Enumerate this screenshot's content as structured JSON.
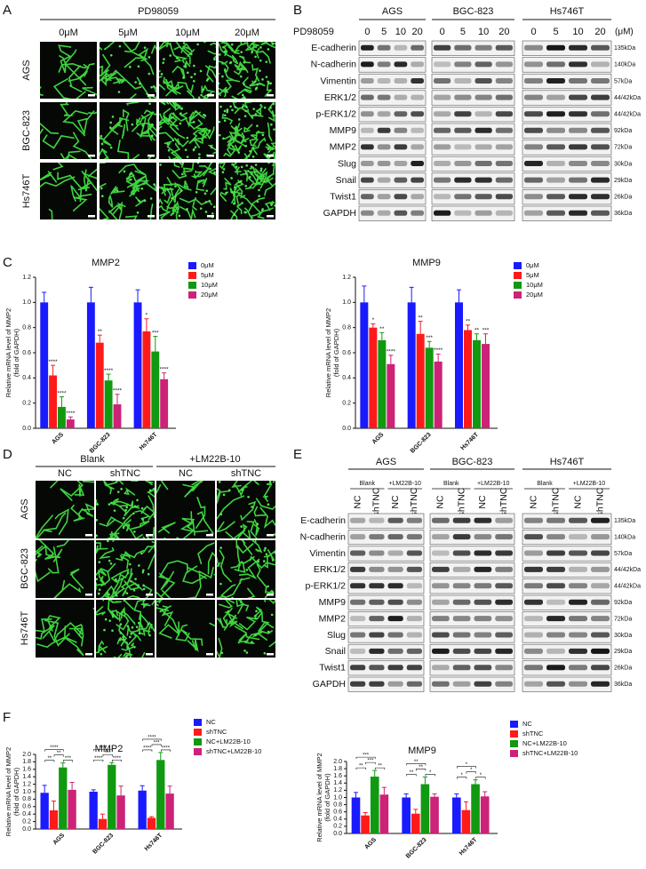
{
  "panel_labels": [
    "A",
    "B",
    "C",
    "D",
    "E",
    "F"
  ],
  "A": {
    "treatment": "PD98059",
    "columns": [
      "0μM",
      "5μM",
      "10μM",
      "20μM"
    ],
    "rows": [
      "AGS",
      "BGC-823",
      "Hs746T"
    ]
  },
  "B": {
    "treatment": "PD98059",
    "groups": [
      "AGS",
      "BGC-823",
      "Hs746T"
    ],
    "lanes": [
      "0",
      "5",
      "10",
      "20"
    ],
    "unit": "(μM)",
    "proteins": [
      "E-cadherin",
      "N-cadherin",
      "Vimentin",
      "ERK1/2",
      "p-ERK1/2",
      "MMP9",
      "MMP2",
      "Slug",
      "Snail",
      "Twist1",
      "GAPDH"
    ],
    "sizes": [
      "135kDa",
      "140kDa",
      "57kDa",
      "44/42kDa",
      "44/42kDa",
      "92kDa",
      "72kDa",
      "30kDa",
      "29kDa",
      "26kDa",
      "36kDa"
    ]
  },
  "D": {
    "groups": [
      "Blank",
      "+LM22B-10"
    ],
    "columns": [
      "NC",
      "shTNC",
      "NC",
      "shTNC"
    ],
    "rows": [
      "AGS",
      "BGC-823",
      "Hs746T"
    ]
  },
  "E": {
    "groups": [
      "AGS",
      "BGC-823",
      "Hs746T"
    ],
    "conditions": [
      "Blank",
      "+LM22B-10"
    ],
    "lanes": [
      "NC",
      "shTNC",
      "NC",
      "shTNC"
    ],
    "proteins": [
      "E-cadherin",
      "N-cadherin",
      "Vimentin",
      "ERK1/2",
      "p-ERK1/2",
      "MMP9",
      "MMP2",
      "Slug",
      "Snail",
      "Twist1",
      "GAPDH"
    ],
    "sizes": [
      "135kDa",
      "140kDa",
      "57kDa",
      "44/42kDa",
      "44/42kDa",
      "92kDa",
      "72kDa",
      "30kDa",
      "29kDa",
      "26kDa",
      "36kDa"
    ]
  },
  "chart_data": [
    {
      "type": "bar",
      "title": "MMP2",
      "ylabel": [
        "Relative mRNA level of MMP2",
        "(fold of GAPDH)"
      ],
      "categories": [
        "AGS",
        "BGC-823",
        "Hs746T"
      ],
      "ylim": [
        0,
        1.2
      ],
      "yticks": [
        {
          "value": 0,
          "label": "0.0"
        },
        {
          "value": 0.2,
          "label": "0.2"
        },
        {
          "value": 0.4,
          "label": "0.4"
        },
        {
          "value": 0.6,
          "label": "0.6"
        },
        {
          "value": 0.8,
          "label": "0.8"
        },
        {
          "value": 1.0,
          "label": "1.0"
        },
        {
          "value": 1.2,
          "label": "1.2"
        }
      ],
      "series": [
        {
          "name": "0μM",
          "color": "#1a1aff",
          "values": [
            1.0,
            1.0,
            1.0
          ],
          "errors": [
            0.08,
            0.12,
            0.1
          ]
        },
        {
          "name": "5μM",
          "color": "#ff1a1a",
          "values": [
            0.42,
            0.68,
            0.77
          ],
          "errors": [
            0.08,
            0.06,
            0.1
          ],
          "annotations": [
            "****",
            "**",
            "*"
          ]
        },
        {
          "name": "10μM",
          "color": "#119911",
          "values": [
            0.17,
            0.38,
            0.61
          ],
          "errors": [
            0.08,
            0.05,
            0.12
          ],
          "annotations": [
            "****",
            "****",
            "***"
          ]
        },
        {
          "name": "20μM",
          "color": "#cc2277",
          "values": [
            0.07,
            0.19,
            0.39
          ],
          "errors": [
            0.02,
            0.08,
            0.05
          ],
          "annotations": [
            "****",
            "****",
            "****"
          ]
        }
      ]
    },
    {
      "type": "bar",
      "title": "MMP9",
      "ylabel": [
        "Relative mRNA level of MMP2",
        "(fold of GAPDH)"
      ],
      "categories": [
        "AGS",
        "BGC-823",
        "Hs746T"
      ],
      "ylim": [
        0,
        1.2
      ],
      "yticks": [
        {
          "value": 0,
          "label": "0.0"
        },
        {
          "value": 0.2,
          "label": "0.2"
        },
        {
          "value": 0.4,
          "label": "0.4"
        },
        {
          "value": 0.6,
          "label": "0.6"
        },
        {
          "value": 0.8,
          "label": "0.8"
        },
        {
          "value": 1.0,
          "label": "1.0"
        },
        {
          "value": 1.2,
          "label": "1.2"
        }
      ],
      "series": [
        {
          "name": "0μM",
          "color": "#1a1aff",
          "values": [
            1.0,
            1.0,
            1.0
          ],
          "errors": [
            0.13,
            0.12,
            0.1
          ]
        },
        {
          "name": "5μM",
          "color": "#ff1a1a",
          "values": [
            0.8,
            0.75,
            0.78
          ],
          "errors": [
            0.03,
            0.1,
            0.04
          ],
          "annotations": [
            "*",
            "**",
            "**"
          ]
        },
        {
          "name": "10μM",
          "color": "#119911",
          "values": [
            0.7,
            0.64,
            0.7
          ],
          "errors": [
            0.06,
            0.05,
            0.05
          ],
          "annotations": [
            "**",
            "***",
            "**"
          ]
        },
        {
          "name": "20μM",
          "color": "#cc2277",
          "values": [
            0.51,
            0.53,
            0.67
          ],
          "errors": [
            0.07,
            0.06,
            0.08
          ],
          "annotations": [
            "****",
            "****",
            "***"
          ]
        }
      ]
    },
    {
      "type": "bar",
      "title": "MMP2",
      "ylabel": [
        "Relative mRNA level of MMP2",
        "(fold of GAPDH)"
      ],
      "categories": [
        "AGS",
        "BGC-823",
        "Hs746T"
      ],
      "ylim": [
        0,
        2.0
      ],
      "yticks": [
        {
          "value": 0,
          "label": "0.0"
        },
        {
          "value": 0.2,
          "label": "0.2"
        },
        {
          "value": 0.4,
          "label": "0.4"
        },
        {
          "value": 0.6,
          "label": "0.6"
        },
        {
          "value": 0.8,
          "label": "0.8"
        },
        {
          "value": 1.0,
          "label": "1.0"
        },
        {
          "value": 1.2,
          "label": "1.2"
        },
        {
          "value": 1.4,
          "label": "1.4"
        },
        {
          "value": 1.6,
          "label": "1.6"
        },
        {
          "value": 1.8,
          "label": "1.8"
        },
        {
          "value": 2.0,
          "label": "2.0"
        }
      ],
      "series": [
        {
          "name": "NC",
          "color": "#1a1aff",
          "values": [
            0.97,
            1.0,
            1.03
          ],
          "errors": [
            0.2,
            0.05,
            0.13
          ]
        },
        {
          "name": "shTNC",
          "color": "#ff1a1a",
          "values": [
            0.5,
            0.27,
            0.3
          ],
          "errors": [
            0.25,
            0.13,
            0.03
          ]
        },
        {
          "name": "NC+LM22B-10",
          "color": "#119911",
          "values": [
            1.65,
            1.72,
            1.85
          ],
          "errors": [
            0.12,
            0.06,
            0.2
          ]
        },
        {
          "name": "shTNC+LM22B-10",
          "color": "#cc2277",
          "values": [
            1.05,
            0.9,
            0.95
          ],
          "errors": [
            0.2,
            0.25,
            0.2
          ]
        }
      ],
      "comparisons": [
        [
          "**",
          "****",
          "**",
          "***"
        ],
        [
          "****",
          "****",
          "***",
          "****"
        ],
        [
          "****",
          "****",
          "***",
          "****"
        ]
      ]
    },
    {
      "type": "bar",
      "title": "MMP9",
      "ylabel": [
        "Relative mRNA level of MMP2",
        "(fold of GAPDH)"
      ],
      "categories": [
        "AGS",
        "BGC-823",
        "Hs746T"
      ],
      "ylim": [
        0,
        2.0
      ],
      "yticks": [
        {
          "value": 0,
          "label": "0.0"
        },
        {
          "value": 0.2,
          "label": "0.2"
        },
        {
          "value": 0.4,
          "label": "0.4"
        },
        {
          "value": 0.6,
          "label": "0.6"
        },
        {
          "value": 0.8,
          "label": "0.8"
        },
        {
          "value": 1.0,
          "label": "1.0"
        },
        {
          "value": 1.2,
          "label": "1.2"
        },
        {
          "value": 1.4,
          "label": "1.4"
        },
        {
          "value": 1.6,
          "label": "1.6"
        },
        {
          "value": 1.8,
          "label": "1.8"
        },
        {
          "value": 2.0,
          "label": "2.0"
        }
      ],
      "series": [
        {
          "name": "NC",
          "color": "#1a1aff",
          "values": [
            1.0,
            1.0,
            1.0
          ],
          "errors": [
            0.14,
            0.1,
            0.1
          ]
        },
        {
          "name": "shTNC",
          "color": "#ff1a1a",
          "values": [
            0.5,
            0.55,
            0.65
          ],
          "errors": [
            0.08,
            0.12,
            0.23
          ]
        },
        {
          "name": "NC+LM22B-10",
          "color": "#119911",
          "values": [
            1.58,
            1.37,
            1.37
          ],
          "errors": [
            0.17,
            0.2,
            0.12
          ]
        },
        {
          "name": "shTNC+LM22B-10",
          "color": "#cc2277",
          "values": [
            1.08,
            1.02,
            1.03
          ],
          "errors": [
            0.2,
            0.08,
            0.13
          ]
        }
      ],
      "comparisons": [
        [
          "**",
          "***",
          "***",
          "**"
        ],
        [
          "**",
          "**",
          "**",
          "*"
        ],
        [
          "*",
          "*",
          "*",
          "*"
        ]
      ]
    }
  ]
}
